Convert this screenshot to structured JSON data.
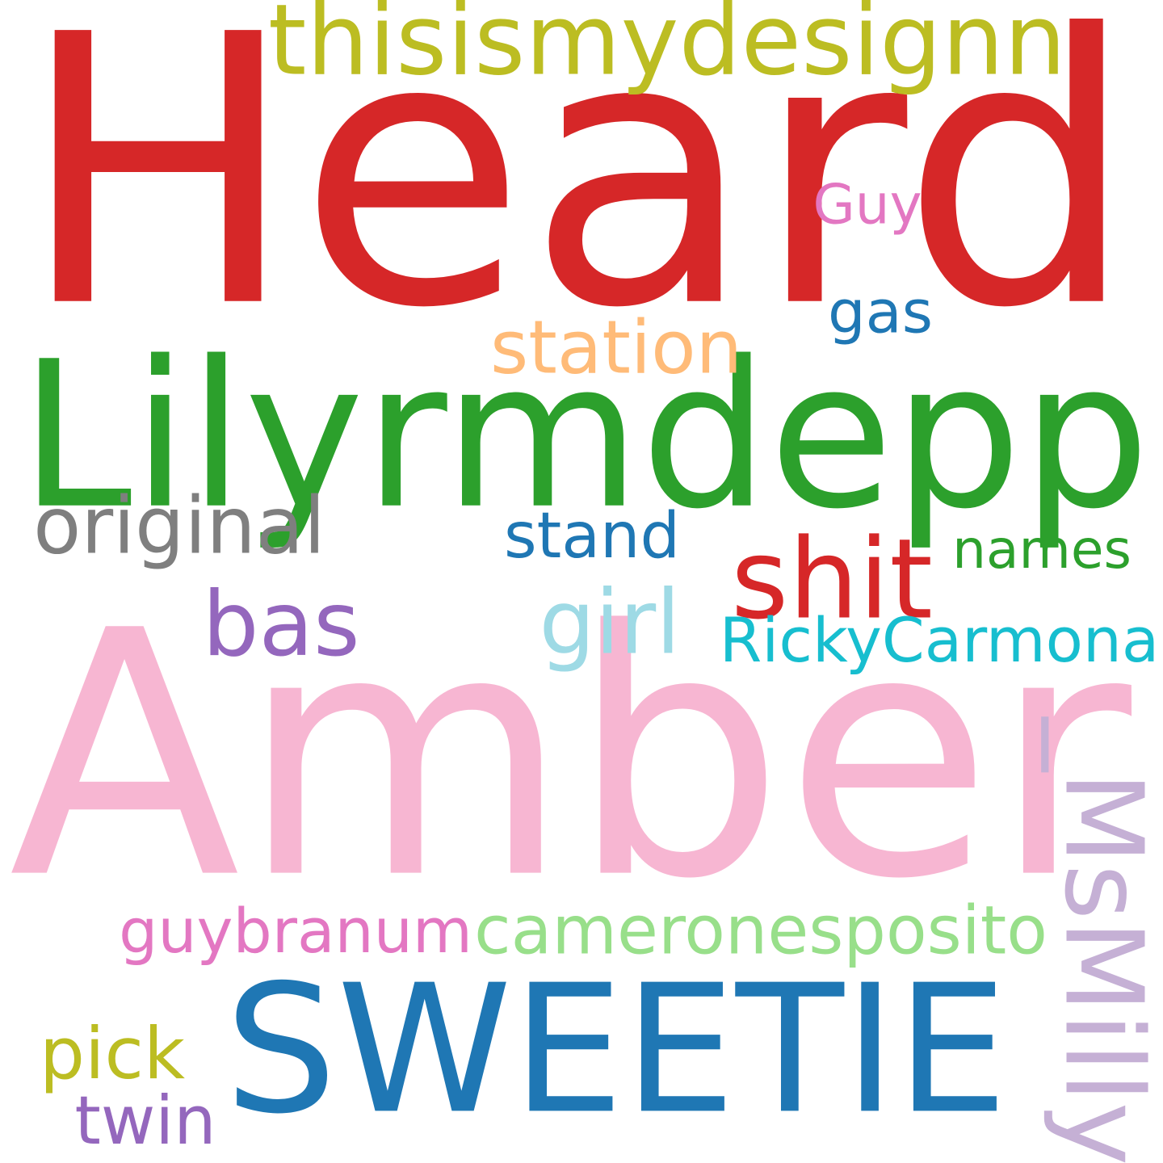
{
  "words": [
    {
      "text": "Heard",
      "color": "#d62728"
    },
    {
      "text": "Amber",
      "color": "#f7b6d2"
    },
    {
      "text": "Lilyrmdepp",
      "color": "#2ca02c"
    },
    {
      "text": "SWEETIE",
      "color": "#1f77b4"
    },
    {
      "text": "thisismydesignn",
      "color": "#bcbd22"
    },
    {
      "text": "_MsMilly",
      "color": "#c5b0d5"
    },
    {
      "text": "shit",
      "color": "#d62728"
    },
    {
      "text": "bas",
      "color": "#9467bd"
    },
    {
      "text": "RickyCarmona",
      "color": "#17becf"
    },
    {
      "text": "cameronesposito",
      "color": "#98df8a"
    },
    {
      "text": "guybranum",
      "color": "#e377c2"
    },
    {
      "text": "original",
      "color": "#7f7f7f"
    },
    {
      "text": "stand",
      "color": "#1f77b4"
    },
    {
      "text": "names",
      "color": "#2ca02c"
    },
    {
      "text": "station",
      "color": "#ffbb78"
    },
    {
      "text": "gas",
      "color": "#1f77b4"
    },
    {
      "text": "Guy",
      "color": "#e377c2"
    },
    {
      "text": "girl",
      "color": "#9edae5"
    },
    {
      "text": "pick",
      "color": "#bcbd22"
    },
    {
      "text": "twin",
      "color": "#9467bd"
    }
  ]
}
